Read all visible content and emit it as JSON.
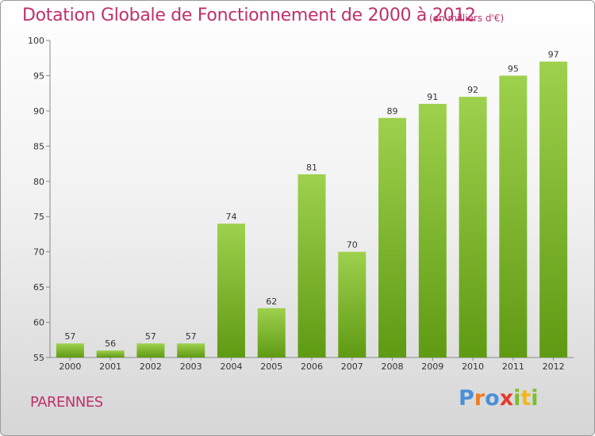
{
  "header": {
    "title": "Dotation Globale de Fonctionnement de 2000 à 2012",
    "subtitle": "(en milliers d'€)"
  },
  "footer": {
    "commune": "PARENNES",
    "logo": "Proxiti"
  },
  "colors": {
    "bar_light": "#9ed14d",
    "bar_dark": "#5f9a13",
    "title": "#c0306a"
  },
  "chart_data": {
    "type": "bar",
    "categories": [
      "2000",
      "2001",
      "2002",
      "2003",
      "2004",
      "2005",
      "2006",
      "2007",
      "2008",
      "2009",
      "2010",
      "2011",
      "2012"
    ],
    "values": [
      57,
      56,
      57,
      57,
      74,
      62,
      81,
      70,
      89,
      91,
      92,
      95,
      97
    ],
    "title": "Dotation Globale de Fonctionnement de 2000 à 2012",
    "subtitle": "(en milliers d'€)",
    "xlabel": "",
    "ylabel": "",
    "ylim": [
      55,
      100
    ],
    "yticks": [
      55,
      60,
      65,
      70,
      75,
      80,
      85,
      90,
      95,
      100
    ],
    "grid": false,
    "data_labels": true
  }
}
